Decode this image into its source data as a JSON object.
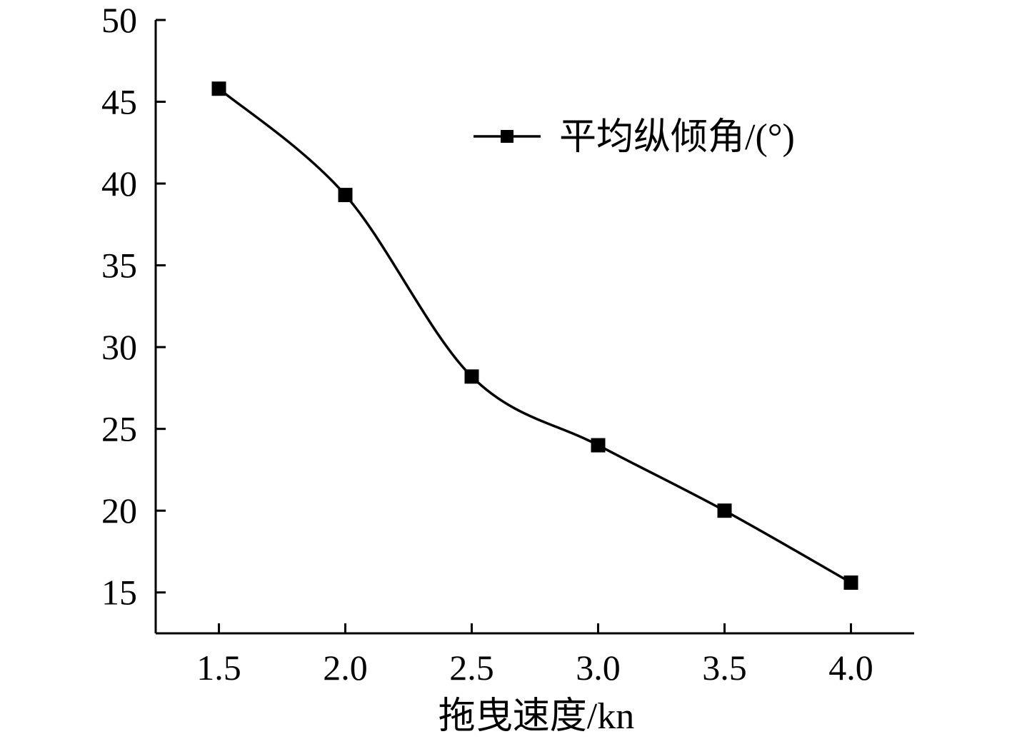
{
  "chart_data": {
    "type": "line",
    "title": "",
    "xlabel": "拖曳速度/kn",
    "ylabel": "",
    "x": [
      1.5,
      2.0,
      2.5,
      3.0,
      3.5,
      4.0
    ],
    "x_tick_labels": [
      "1.5",
      "2.0",
      "2.5",
      "3.0",
      "3.5",
      "4.0"
    ],
    "y_tick_labels": [
      "15",
      "20",
      "25",
      "30",
      "35",
      "40",
      "45",
      "50"
    ],
    "xlim": [
      1.25,
      4.25
    ],
    "ylim": [
      12.5,
      50
    ],
    "grid": false,
    "legend_position": "top-right",
    "series": [
      {
        "name": "平均纵倾角/(°)",
        "values": [
          45.8,
          39.3,
          28.2,
          24.0,
          20.0,
          15.6
        ],
        "color": "#000000",
        "marker": "square",
        "smooth": true
      }
    ]
  }
}
